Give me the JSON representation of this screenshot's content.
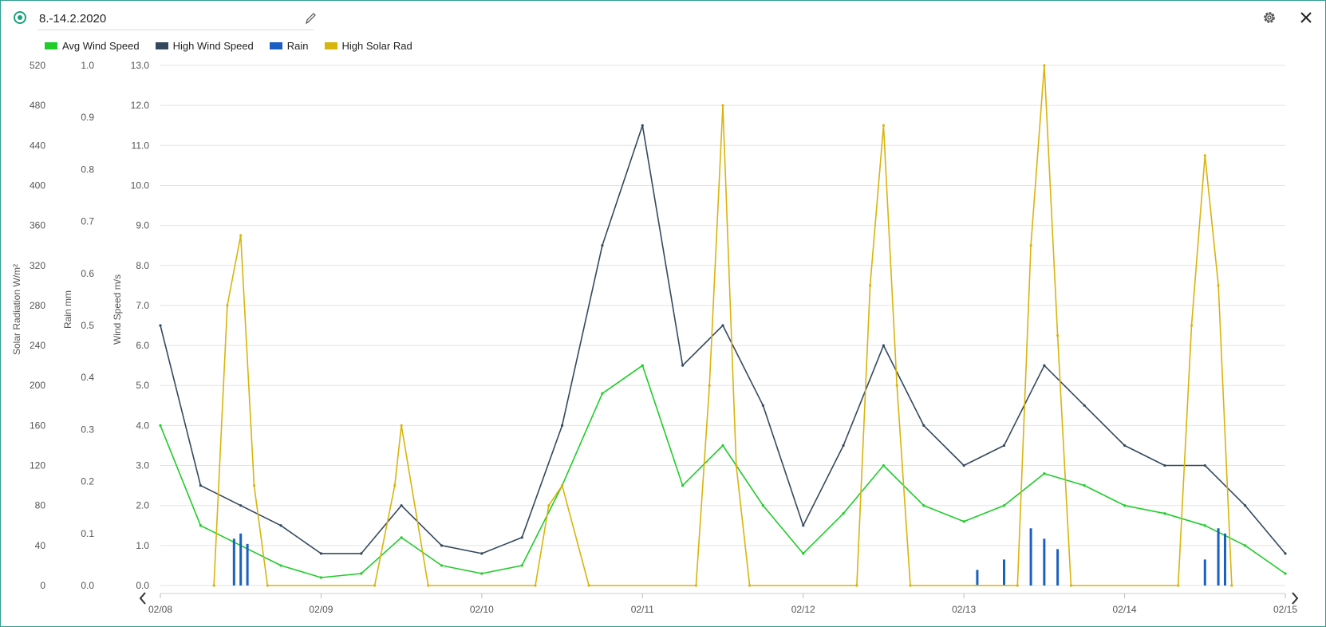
{
  "header": {
    "title": "8.-14.2.2020",
    "record_icon": "record-icon",
    "edit_icon": "pencil-icon",
    "settings_icon": "gear-icon",
    "close_icon": "close-icon"
  },
  "legend": [
    {
      "label": "Avg Wind Speed",
      "color": "#1fcc2a"
    },
    {
      "label": "High Wind Speed",
      "color": "#34495e"
    },
    {
      "label": "Rain",
      "color": "#1c5fc2"
    },
    {
      "label": "High Solar Rad",
      "color": "#d9b40b"
    }
  ],
  "nav": {
    "prev_icon": "chevron-left-icon",
    "next_icon": "chevron-right-icon"
  },
  "chart_data": {
    "type": "line",
    "x_ticks": [
      "02/08",
      "02/09",
      "02/10",
      "02/11",
      "02/12",
      "02/13",
      "02/14",
      "02/15"
    ],
    "xlim": [
      "2020-02-08",
      "2020-02-15"
    ],
    "axes": [
      {
        "title": "Solar Radiation W/m²",
        "ticks": [
          "0",
          "40",
          "80",
          "120",
          "160",
          "200",
          "240",
          "280",
          "320",
          "360",
          "400",
          "440",
          "480",
          "520"
        ],
        "ylim": [
          0,
          520
        ]
      },
      {
        "title": "Rain  mm",
        "ticks": [
          "0.0",
          "0.1",
          "0.2",
          "0.3",
          "0.4",
          "0.5",
          "0.6",
          "0.7",
          "0.8",
          "0.9",
          "1.0"
        ],
        "ylim": [
          0,
          1.0
        ]
      },
      {
        "title": "Wind Speed m/s",
        "ticks": [
          "0.0",
          "1.0",
          "2.0",
          "3.0",
          "4.0",
          "5.0",
          "6.0",
          "7.0",
          "8.0",
          "9.0",
          "10.0",
          "11.0",
          "12.0",
          "13.0"
        ],
        "ylim": [
          0,
          13
        ]
      }
    ],
    "grid": true,
    "legend_position": "top-left",
    "series": [
      {
        "name": "Avg Wind Speed",
        "axis": "Wind Speed m/s",
        "color": "#1fcc2a",
        "x": [
          "2020-02-08",
          "2020-02-08T06:00",
          "2020-02-08T12:00",
          "2020-02-08T18:00",
          "2020-02-09",
          "2020-02-09T06:00",
          "2020-02-09T12:00",
          "2020-02-09T18:00",
          "2020-02-10",
          "2020-02-10T06:00",
          "2020-02-10T12:00",
          "2020-02-10T18:00",
          "2020-02-11",
          "2020-02-11T06:00",
          "2020-02-11T12:00",
          "2020-02-11T18:00",
          "2020-02-12",
          "2020-02-12T06:00",
          "2020-02-12T12:00",
          "2020-02-12T18:00",
          "2020-02-13",
          "2020-02-13T06:00",
          "2020-02-13T12:00",
          "2020-02-13T18:00",
          "2020-02-14",
          "2020-02-14T06:00",
          "2020-02-14T12:00",
          "2020-02-14T18:00",
          "2020-02-15"
        ],
        "values": [
          4.0,
          1.5,
          1.0,
          0.5,
          0.2,
          0.3,
          1.2,
          0.5,
          0.3,
          0.5,
          2.5,
          4.8,
          5.5,
          2.5,
          3.5,
          2.0,
          0.8,
          1.8,
          3.0,
          2.0,
          1.6,
          2.0,
          2.8,
          2.5,
          2.0,
          1.8,
          1.5,
          1.0,
          0.3
        ]
      },
      {
        "name": "High Wind Speed",
        "axis": "Wind Speed m/s",
        "color": "#34495e",
        "x": [
          "2020-02-08",
          "2020-02-08T06:00",
          "2020-02-08T12:00",
          "2020-02-08T18:00",
          "2020-02-09",
          "2020-02-09T06:00",
          "2020-02-09T12:00",
          "2020-02-09T18:00",
          "2020-02-10",
          "2020-02-10T06:00",
          "2020-02-10T12:00",
          "2020-02-10T18:00",
          "2020-02-11",
          "2020-02-11T06:00",
          "2020-02-11T12:00",
          "2020-02-11T18:00",
          "2020-02-12",
          "2020-02-12T06:00",
          "2020-02-12T12:00",
          "2020-02-12T18:00",
          "2020-02-13",
          "2020-02-13T06:00",
          "2020-02-13T12:00",
          "2020-02-13T18:00",
          "2020-02-14",
          "2020-02-14T06:00",
          "2020-02-14T12:00",
          "2020-02-14T18:00",
          "2020-02-15"
        ],
        "values": [
          6.5,
          2.5,
          2.0,
          1.5,
          0.8,
          0.8,
          2.0,
          1.0,
          0.8,
          1.2,
          4.0,
          8.5,
          11.5,
          5.5,
          6.5,
          4.5,
          1.5,
          3.5,
          6.0,
          4.0,
          3.0,
          3.5,
          5.5,
          4.5,
          3.5,
          3.0,
          3.0,
          2.0,
          0.8
        ]
      },
      {
        "name": "Rain",
        "axis": "Rain  mm",
        "color": "#1c5fc2",
        "x": [
          "2020-02-08T11:00",
          "2020-02-08T12:00",
          "2020-02-08T13:00",
          "2020-02-13T02:00",
          "2020-02-13T06:00",
          "2020-02-13T10:00",
          "2020-02-13T12:00",
          "2020-02-13T14:00",
          "2020-02-14T12:00",
          "2020-02-14T14:00",
          "2020-02-14T15:00"
        ],
        "values": [
          0.09,
          0.1,
          0.08,
          0.03,
          0.05,
          0.11,
          0.09,
          0.07,
          0.05,
          0.11,
          0.1
        ]
      },
      {
        "name": "High Solar Rad",
        "axis": "Solar Radiation W/m²",
        "color": "#d9b40b",
        "x": [
          "2020-02-08T08:00",
          "2020-02-08T10:00",
          "2020-02-08T12:00",
          "2020-02-08T14:00",
          "2020-02-08T16:00",
          "2020-02-09T08:00",
          "2020-02-09T11:00",
          "2020-02-09T12:00",
          "2020-02-09T16:00",
          "2020-02-10T08:00",
          "2020-02-10T10:00",
          "2020-02-10T12:00",
          "2020-02-10T16:00",
          "2020-02-11T08:00",
          "2020-02-11T10:00",
          "2020-02-11T12:00",
          "2020-02-11T14:00",
          "2020-02-11T16:00",
          "2020-02-12T08:00",
          "2020-02-12T10:00",
          "2020-02-12T12:00",
          "2020-02-12T14:00",
          "2020-02-12T16:00",
          "2020-02-13T08:00",
          "2020-02-13T10:00",
          "2020-02-13T12:00",
          "2020-02-13T14:00",
          "2020-02-13T16:00",
          "2020-02-14T08:00",
          "2020-02-14T10:00",
          "2020-02-14T12:00",
          "2020-02-14T14:00",
          "2020-02-14T16:00"
        ],
        "values": [
          0,
          280,
          350,
          100,
          0,
          0,
          100,
          160,
          0,
          0,
          80,
          100,
          0,
          0,
          200,
          480,
          120,
          0,
          0,
          300,
          460,
          200,
          0,
          0,
          340,
          520,
          250,
          0,
          0,
          260,
          430,
          300,
          0
        ]
      }
    ]
  }
}
